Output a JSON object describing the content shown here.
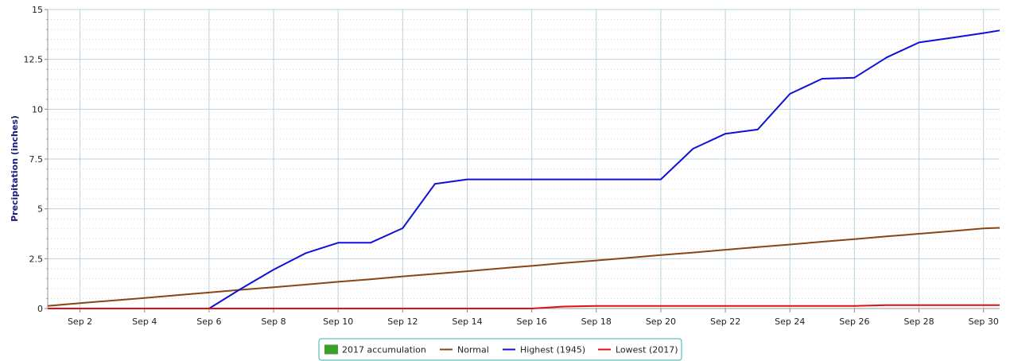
{
  "chart_data": {
    "type": "line",
    "title": "",
    "xlabel": "",
    "ylabel": "Precipitation (inches)",
    "xlim": [
      1,
      30.5
    ],
    "ylim": [
      0,
      15
    ],
    "y_ticks": [
      0,
      2.5,
      5,
      7.5,
      10,
      12.5,
      15
    ],
    "y_tick_labels": [
      "0",
      "2.5",
      "5",
      "7.5",
      "10",
      "12.5",
      "15"
    ],
    "x_ticks": [
      2,
      4,
      6,
      8,
      10,
      12,
      14,
      16,
      18,
      20,
      22,
      24,
      26,
      28,
      30
    ],
    "x_tick_labels": [
      "Sep 2",
      "Sep 4",
      "Sep 6",
      "Sep 8",
      "Sep 10",
      "Sep 12",
      "Sep 14",
      "Sep 16",
      "Sep 18",
      "Sep 20",
      "Sep 22",
      "Sep 24",
      "Sep 26",
      "Sep 28",
      "Sep 30"
    ],
    "grid": true,
    "legend_position": "bottom-center",
    "series": [
      {
        "name": "2017 accumulation",
        "color": "#3aa02a",
        "kind": "area",
        "x": [],
        "values": []
      },
      {
        "name": "Normal",
        "color": "#8b4513",
        "kind": "line",
        "x": [
          1,
          2,
          3,
          4,
          5,
          6,
          7,
          8,
          9,
          10,
          11,
          12,
          13,
          14,
          15,
          16,
          17,
          18,
          19,
          20,
          21,
          22,
          23,
          24,
          25,
          26,
          27,
          28,
          29,
          30,
          30.5
        ],
        "values": [
          0.13,
          0.27,
          0.4,
          0.53,
          0.67,
          0.8,
          0.94,
          1.07,
          1.2,
          1.34,
          1.47,
          1.61,
          1.74,
          1.87,
          2.01,
          2.14,
          2.28,
          2.41,
          2.54,
          2.68,
          2.81,
          2.95,
          3.08,
          3.21,
          3.35,
          3.48,
          3.62,
          3.75,
          3.88,
          4.02,
          4.05
        ]
      },
      {
        "name": "Highest (1945)",
        "color": "#1010d8",
        "kind": "line",
        "x": [
          1,
          2,
          3,
          4,
          5,
          6,
          7,
          8,
          9,
          10,
          11,
          12,
          13,
          14,
          15,
          16,
          17,
          18,
          19,
          20,
          21,
          22,
          23,
          24,
          25,
          26,
          27,
          28,
          29,
          30,
          30.5
        ],
        "values": [
          0,
          0,
          0,
          0,
          0,
          0,
          1.0,
          1.95,
          2.78,
          3.3,
          3.3,
          4.03,
          6.25,
          6.48,
          6.48,
          6.48,
          6.48,
          6.48,
          6.48,
          6.48,
          8.02,
          8.77,
          8.98,
          10.77,
          11.53,
          11.58,
          12.6,
          13.35,
          13.58,
          13.82,
          13.95
        ]
      },
      {
        "name": "Lowest (2017)",
        "color": "#e01010",
        "kind": "line",
        "x": [
          1,
          2,
          3,
          4,
          5,
          6,
          7,
          8,
          9,
          10,
          11,
          12,
          13,
          14,
          15,
          16,
          17,
          18,
          19,
          20,
          21,
          22,
          23,
          24,
          25,
          26,
          27,
          28,
          29,
          30,
          30.5
        ],
        "values": [
          0,
          0,
          0,
          0,
          0,
          0,
          0,
          0,
          0,
          0,
          0,
          0,
          0,
          0,
          0,
          0,
          0.1,
          0.13,
          0.13,
          0.13,
          0.13,
          0.13,
          0.13,
          0.13,
          0.13,
          0.13,
          0.17,
          0.17,
          0.17,
          0.17,
          0.17
        ]
      }
    ]
  }
}
